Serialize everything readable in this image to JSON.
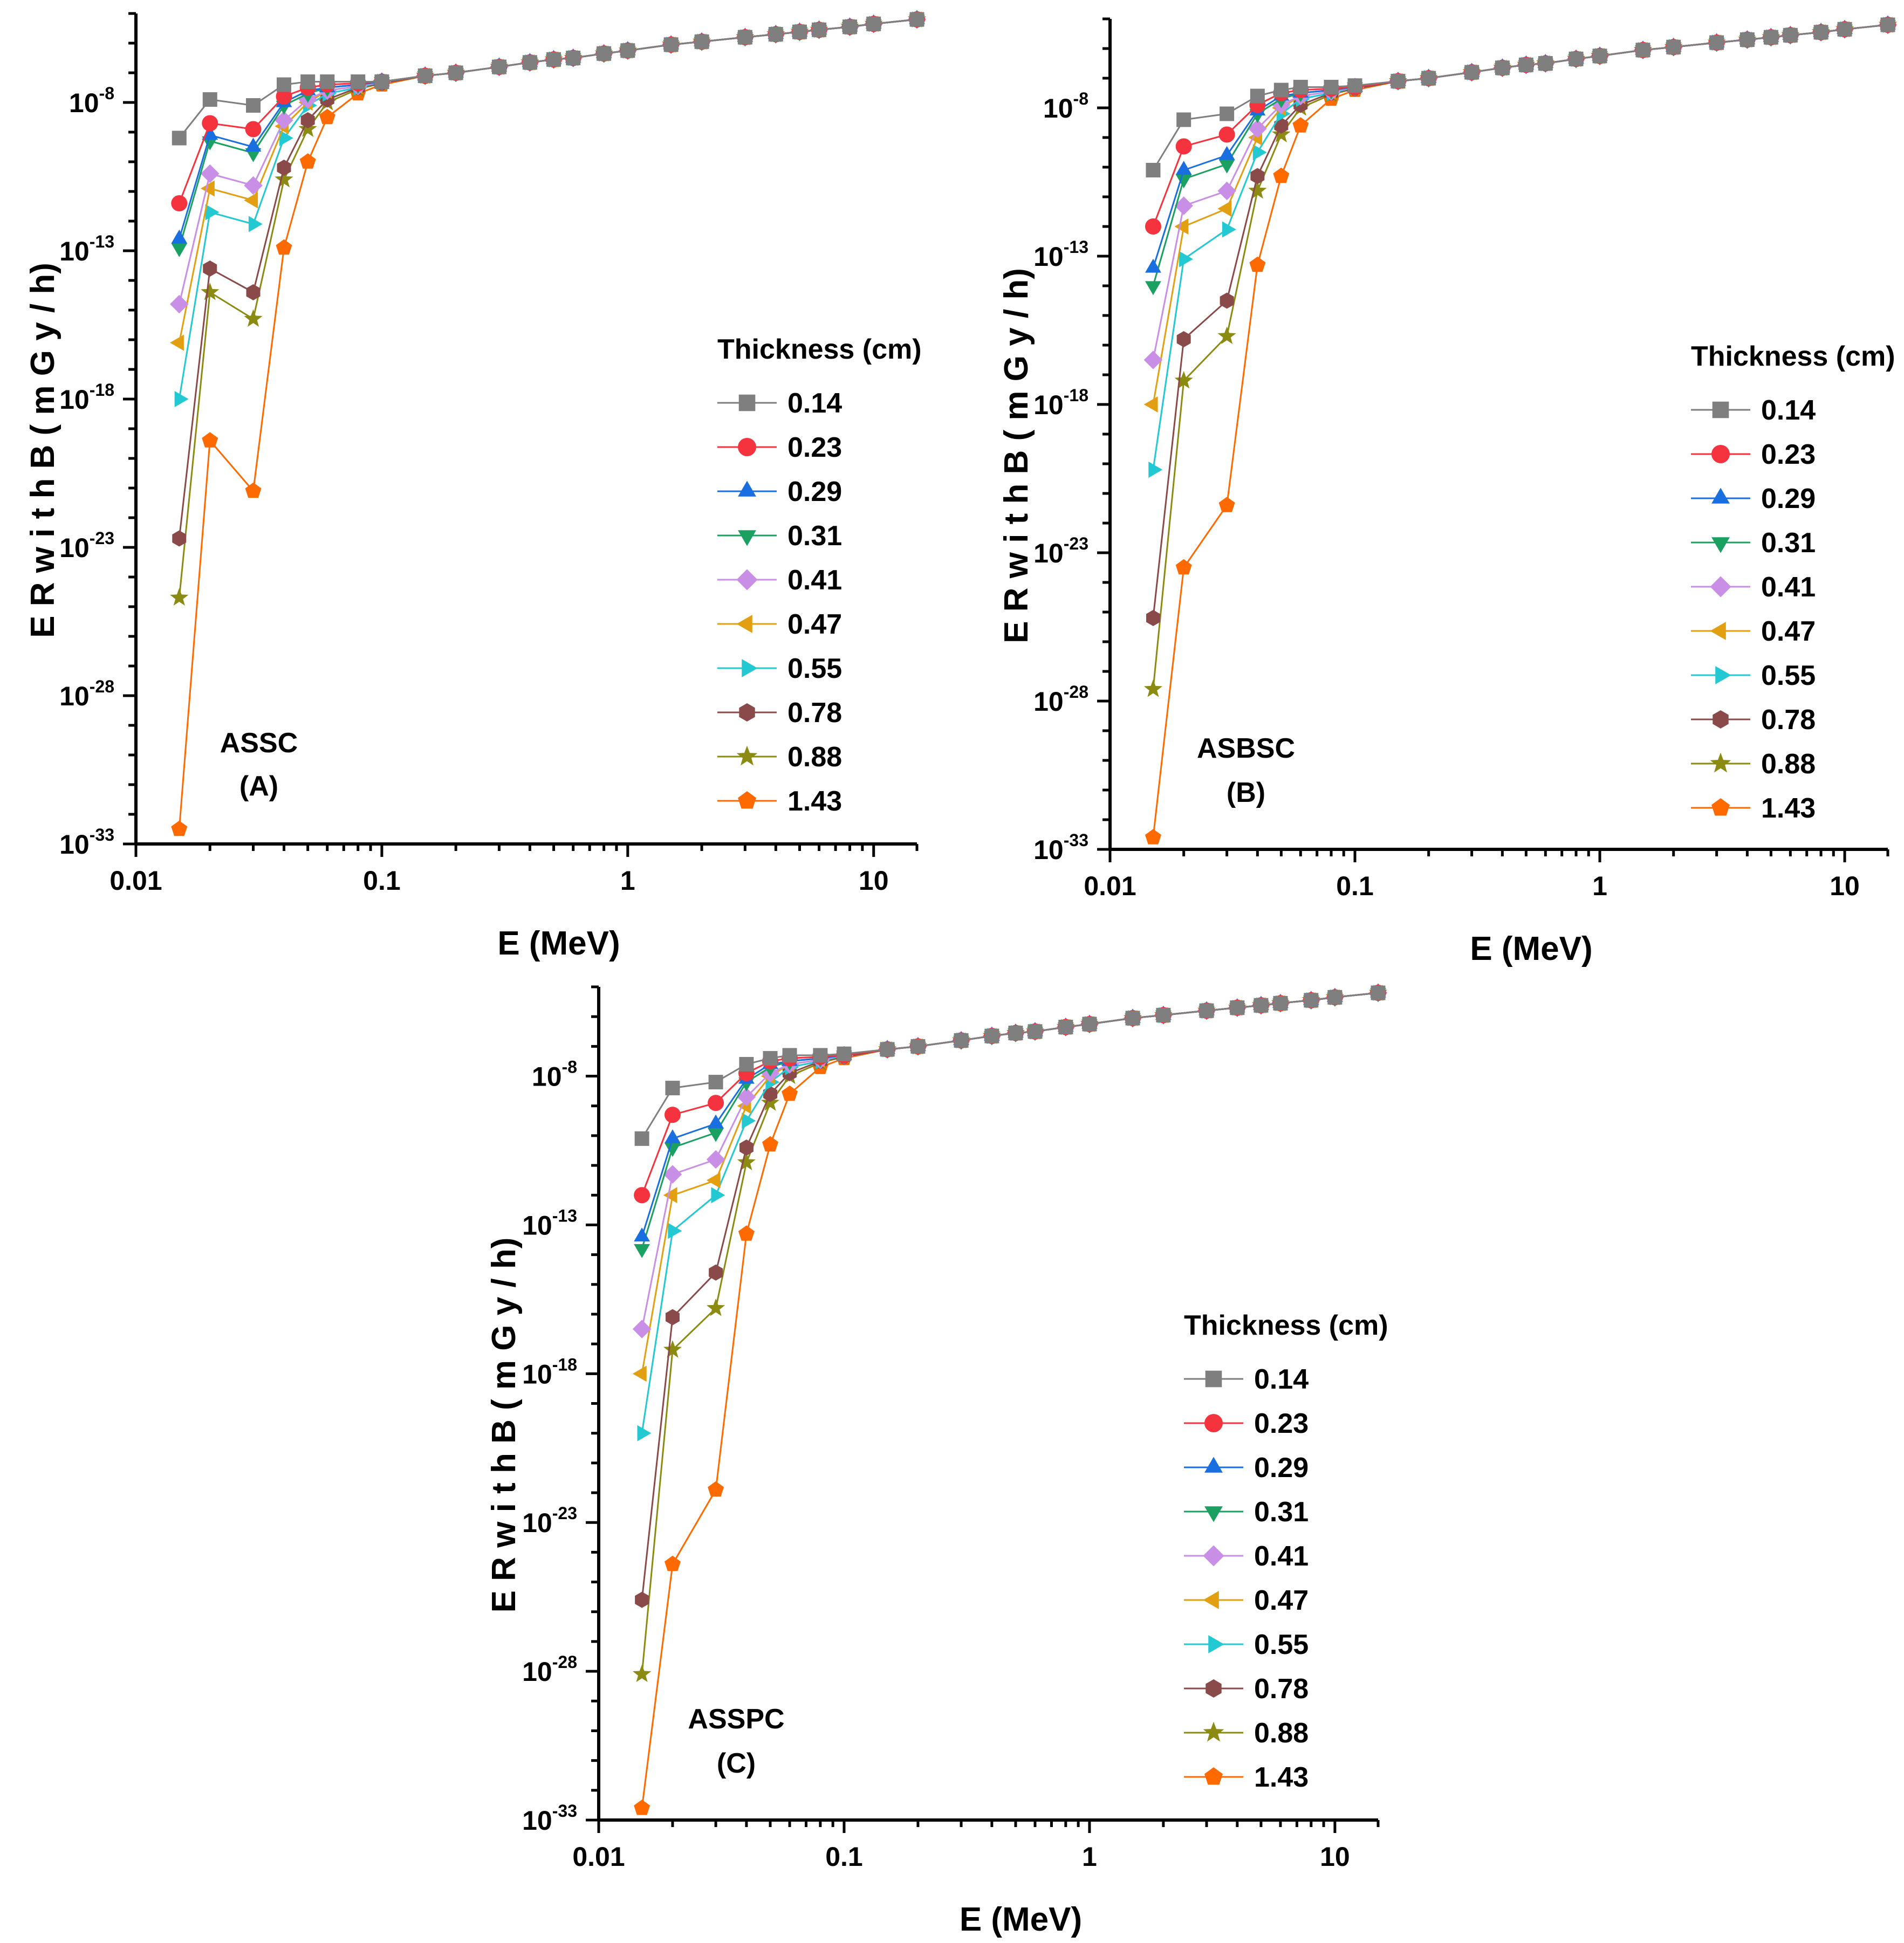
{
  "legend_title": "Thickness (cm)",
  "colors": {
    "0.14": "#7f7f7f",
    "0.23": "#f5333f",
    "0.29": "#1a6fe0",
    "0.31": "#1aa060",
    "0.41": "#c98ee6",
    "0.47": "#e29f12",
    "0.55": "#22c8d2",
    "0.78": "#8a4a4a",
    "0.88": "#8b8b12",
    "1.43": "#ff6a00"
  },
  "markers": {
    "0.14": "square",
    "0.23": "circle",
    "0.29": "triangle-up",
    "0.31": "triangle-down",
    "0.41": "diamond",
    "0.47": "triangle-left",
    "0.55": "triangle-right",
    "0.78": "hexagon",
    "0.88": "star",
    "1.43": "pentagon"
  },
  "chart_data": [
    {
      "type": "line",
      "annotation": "ASSC",
      "panel_label": "(A)",
      "xlabel": "E (MeV)",
      "ylabel": "E R  w i t h  B  ( m G y / h)",
      "xscale": "log",
      "yscale": "log",
      "xlim": [
        0.01,
        15
      ],
      "ylim_exp": [
        -33,
        -5
      ],
      "xticks": [
        "0.01",
        "0.1",
        "1",
        "10"
      ],
      "yticks_exp": [
        -33,
        -28,
        -23,
        -18,
        -13,
        -8
      ],
      "legend_position": "right",
      "x": [
        0.015,
        0.02,
        0.03,
        0.04,
        0.05,
        0.06,
        0.08,
        0.1,
        0.15,
        0.2,
        0.3,
        0.4,
        0.5,
        0.6,
        0.8,
        1,
        1.5,
        2,
        3,
        4,
        5,
        6,
        8,
        10,
        15
      ],
      "series": [
        {
          "name": "0.14",
          "log10_values": [
            -9.2,
            -7.9,
            -8.1,
            -7.4,
            -7.3,
            -7.3,
            -7.3,
            -7.3,
            -7.1,
            -7.0,
            -6.8,
            -6.65,
            -6.55,
            -6.5,
            -6.35,
            -6.25,
            -6.05,
            -5.95,
            -5.8,
            -5.7,
            -5.62,
            -5.55,
            -5.45,
            -5.35,
            -5.2
          ]
        },
        {
          "name": "0.23",
          "log10_values": [
            -11.4,
            -8.7,
            -8.9,
            -7.8,
            -7.5,
            -7.4,
            -7.35,
            -7.3,
            -7.1,
            -7.0,
            -6.8,
            -6.65,
            -6.55,
            -6.5,
            -6.35,
            -6.25,
            -6.05,
            -5.95,
            -5.8,
            -5.7,
            -5.62,
            -5.55,
            -5.45,
            -5.35,
            -5.2
          ]
        },
        {
          "name": "0.29",
          "log10_values": [
            -12.6,
            -9.1,
            -9.5,
            -8.0,
            -7.6,
            -7.5,
            -7.4,
            -7.3,
            -7.1,
            -7.0,
            -6.8,
            -6.65,
            -6.55,
            -6.5,
            -6.35,
            -6.25,
            -6.05,
            -5.95,
            -5.8,
            -5.7,
            -5.62,
            -5.55,
            -5.45,
            -5.35,
            -5.2
          ]
        },
        {
          "name": "0.31",
          "log10_values": [
            -12.9,
            -9.3,
            -9.7,
            -8.1,
            -7.7,
            -7.5,
            -7.4,
            -7.3,
            -7.1,
            -7.0,
            -6.8,
            -6.65,
            -6.55,
            -6.5,
            -6.35,
            -6.25,
            -6.05,
            -5.95,
            -5.8,
            -5.7,
            -5.62,
            -5.55,
            -5.45,
            -5.35,
            -5.2
          ]
        },
        {
          "name": "0.41",
          "log10_values": [
            -14.8,
            -10.4,
            -10.8,
            -8.6,
            -7.9,
            -7.6,
            -7.45,
            -7.3,
            -7.1,
            -7.0,
            -6.8,
            -6.65,
            -6.55,
            -6.5,
            -6.35,
            -6.25,
            -6.05,
            -5.95,
            -5.8,
            -5.7,
            -5.62,
            -5.55,
            -5.45,
            -5.35,
            -5.2
          ]
        },
        {
          "name": "0.47",
          "log10_values": [
            -16.1,
            -10.9,
            -11.3,
            -8.8,
            -8.0,
            -7.6,
            -7.45,
            -7.3,
            -7.1,
            -7.0,
            -6.8,
            -6.65,
            -6.55,
            -6.5,
            -6.35,
            -6.25,
            -6.05,
            -5.95,
            -5.8,
            -5.7,
            -5.62,
            -5.55,
            -5.45,
            -5.35,
            -5.2
          ]
        },
        {
          "name": "0.55",
          "log10_values": [
            -18.0,
            -11.7,
            -12.1,
            -9.2,
            -8.1,
            -7.7,
            -7.5,
            -7.3,
            -7.1,
            -7.0,
            -6.8,
            -6.65,
            -6.55,
            -6.5,
            -6.35,
            -6.25,
            -6.05,
            -5.95,
            -5.8,
            -5.7,
            -5.62,
            -5.55,
            -5.45,
            -5.35,
            -5.2
          ]
        },
        {
          "name": "0.78",
          "log10_values": [
            -22.7,
            -13.6,
            -14.4,
            -10.2,
            -8.6,
            -7.9,
            -7.5,
            -7.35,
            -7.1,
            -7.0,
            -6.8,
            -6.65,
            -6.55,
            -6.5,
            -6.35,
            -6.25,
            -6.05,
            -5.95,
            -5.8,
            -5.7,
            -5.62,
            -5.55,
            -5.45,
            -5.35,
            -5.2
          ]
        },
        {
          "name": "0.88",
          "log10_values": [
            -24.7,
            -14.4,
            -15.3,
            -10.6,
            -8.9,
            -8.0,
            -7.55,
            -7.35,
            -7.1,
            -7.0,
            -6.8,
            -6.65,
            -6.55,
            -6.5,
            -6.35,
            -6.25,
            -6.05,
            -5.95,
            -5.8,
            -5.7,
            -5.62,
            -5.55,
            -5.45,
            -5.35,
            -5.2
          ]
        },
        {
          "name": "1.43",
          "log10_values": [
            -32.5,
            -19.4,
            -21.1,
            -12.9,
            -10.0,
            -8.5,
            -7.7,
            -7.4,
            -7.1,
            -7.0,
            -6.8,
            -6.65,
            -6.55,
            -6.5,
            -6.35,
            -6.25,
            -6.05,
            -5.95,
            -5.8,
            -5.7,
            -5.62,
            -5.55,
            -5.45,
            -5.35,
            -5.2
          ]
        }
      ]
    },
    {
      "type": "line",
      "annotation": "ASBSC",
      "panel_label": "(B)",
      "xlabel": "E (MeV)",
      "ylabel": "E R  w i t h  B  ( m G y / h)",
      "xscale": "log",
      "yscale": "log",
      "xlim": [
        0.01,
        15
      ],
      "ylim_exp": [
        -33,
        -5
      ],
      "xticks": [
        "0.01",
        "0.1",
        "1",
        "10"
      ],
      "yticks_exp": [
        -33,
        -28,
        -23,
        -18,
        -13,
        -8
      ],
      "legend_position": "right",
      "x": [
        0.015,
        0.02,
        0.03,
        0.04,
        0.05,
        0.06,
        0.08,
        0.1,
        0.15,
        0.2,
        0.3,
        0.4,
        0.5,
        0.6,
        0.8,
        1,
        1.5,
        2,
        3,
        4,
        5,
        6,
        8,
        10,
        15
      ],
      "series": [
        {
          "name": "0.14",
          "log10_values": [
            -10.1,
            -8.4,
            -8.2,
            -7.6,
            -7.4,
            -7.3,
            -7.3,
            -7.25,
            -7.1,
            -7.0,
            -6.8,
            -6.65,
            -6.55,
            -6.5,
            -6.35,
            -6.25,
            -6.05,
            -5.95,
            -5.8,
            -5.7,
            -5.62,
            -5.55,
            -5.45,
            -5.35,
            -5.2
          ]
        },
        {
          "name": "0.23",
          "log10_values": [
            -12.0,
            -9.3,
            -8.9,
            -7.9,
            -7.5,
            -7.4,
            -7.35,
            -7.3,
            -7.1,
            -7.0,
            -6.8,
            -6.65,
            -6.55,
            -6.5,
            -6.35,
            -6.25,
            -6.05,
            -5.95,
            -5.8,
            -5.7,
            -5.62,
            -5.55,
            -5.45,
            -5.35,
            -5.2
          ]
        },
        {
          "name": "0.29",
          "log10_values": [
            -13.4,
            -10.1,
            -9.6,
            -8.1,
            -7.6,
            -7.5,
            -7.4,
            -7.3,
            -7.1,
            -7.0,
            -6.8,
            -6.65,
            -6.55,
            -6.5,
            -6.35,
            -6.25,
            -6.05,
            -5.95,
            -5.8,
            -5.7,
            -5.62,
            -5.55,
            -5.45,
            -5.35,
            -5.2
          ]
        },
        {
          "name": "0.31",
          "log10_values": [
            -14.0,
            -10.4,
            -9.9,
            -8.2,
            -7.7,
            -7.5,
            -7.4,
            -7.3,
            -7.1,
            -7.0,
            -6.8,
            -6.65,
            -6.55,
            -6.5,
            -6.35,
            -6.25,
            -6.05,
            -5.95,
            -5.8,
            -5.7,
            -5.62,
            -5.55,
            -5.45,
            -5.35,
            -5.2
          ]
        },
        {
          "name": "0.41",
          "log10_values": [
            -16.5,
            -11.3,
            -10.8,
            -8.7,
            -7.9,
            -7.6,
            -7.45,
            -7.3,
            -7.1,
            -7.0,
            -6.8,
            -6.65,
            -6.55,
            -6.5,
            -6.35,
            -6.25,
            -6.05,
            -5.95,
            -5.8,
            -5.7,
            -5.62,
            -5.55,
            -5.45,
            -5.35,
            -5.2
          ]
        },
        {
          "name": "0.47",
          "log10_values": [
            -18.0,
            -12.0,
            -11.4,
            -9.0,
            -8.0,
            -7.6,
            -7.45,
            -7.3,
            -7.1,
            -7.0,
            -6.8,
            -6.65,
            -6.55,
            -6.5,
            -6.35,
            -6.25,
            -6.05,
            -5.95,
            -5.8,
            -5.7,
            -5.62,
            -5.55,
            -5.45,
            -5.35,
            -5.2
          ]
        },
        {
          "name": "0.55",
          "log10_values": [
            -20.2,
            -13.1,
            -12.1,
            -9.5,
            -8.2,
            -7.7,
            -7.5,
            -7.3,
            -7.1,
            -7.0,
            -6.8,
            -6.65,
            -6.55,
            -6.5,
            -6.35,
            -6.25,
            -6.05,
            -5.95,
            -5.8,
            -5.7,
            -5.62,
            -5.55,
            -5.45,
            -5.35,
            -5.2
          ]
        },
        {
          "name": "0.78",
          "log10_values": [
            -25.2,
            -15.8,
            -14.5,
            -10.3,
            -8.6,
            -7.9,
            -7.5,
            -7.35,
            -7.1,
            -7.0,
            -6.8,
            -6.65,
            -6.55,
            -6.5,
            -6.35,
            -6.25,
            -6.05,
            -5.95,
            -5.8,
            -5.7,
            -5.62,
            -5.55,
            -5.45,
            -5.35,
            -5.2
          ]
        },
        {
          "name": "0.88",
          "log10_values": [
            -27.6,
            -17.2,
            -15.7,
            -10.8,
            -8.9,
            -8.0,
            -7.55,
            -7.35,
            -7.1,
            -7.0,
            -6.8,
            -6.65,
            -6.55,
            -6.5,
            -6.35,
            -6.25,
            -6.05,
            -5.95,
            -5.8,
            -5.7,
            -5.62,
            -5.55,
            -5.45,
            -5.35,
            -5.2
          ]
        },
        {
          "name": "1.43",
          "log10_values": [
            -32.6,
            -23.5,
            -21.4,
            -13.3,
            -10.3,
            -8.6,
            -7.7,
            -7.4,
            -7.1,
            -7.0,
            -6.8,
            -6.65,
            -6.55,
            -6.5,
            -6.35,
            -6.25,
            -6.05,
            -5.95,
            -5.8,
            -5.7,
            -5.62,
            -5.55,
            -5.45,
            -5.35,
            -5.2
          ]
        }
      ]
    },
    {
      "type": "line",
      "annotation": "ASSPC",
      "panel_label": "(C)",
      "xlabel": "E (MeV)",
      "ylabel": "E R  w i t h  B  ( m G y / h)",
      "xscale": "log",
      "yscale": "log",
      "xlim": [
        0.01,
        15
      ],
      "ylim_exp": [
        -33,
        -5
      ],
      "xticks": [
        "0.01",
        "0.1",
        "1",
        "10"
      ],
      "yticks_exp": [
        -33,
        -28,
        -23,
        -18,
        -13,
        -8
      ],
      "legend_position": "right",
      "x": [
        0.015,
        0.02,
        0.03,
        0.04,
        0.05,
        0.06,
        0.08,
        0.1,
        0.15,
        0.2,
        0.3,
        0.4,
        0.5,
        0.6,
        0.8,
        1,
        1.5,
        2,
        3,
        4,
        5,
        6,
        8,
        10,
        15
      ],
      "series": [
        {
          "name": "0.14",
          "log10_values": [
            -10.1,
            -8.4,
            -8.2,
            -7.6,
            -7.4,
            -7.3,
            -7.3,
            -7.25,
            -7.1,
            -7.0,
            -6.8,
            -6.65,
            -6.55,
            -6.5,
            -6.35,
            -6.25,
            -6.05,
            -5.95,
            -5.8,
            -5.7,
            -5.62,
            -5.55,
            -5.45,
            -5.35,
            -5.2
          ]
        },
        {
          "name": "0.23",
          "log10_values": [
            -12.0,
            -9.3,
            -8.9,
            -7.9,
            -7.5,
            -7.4,
            -7.35,
            -7.3,
            -7.1,
            -7.0,
            -6.8,
            -6.65,
            -6.55,
            -6.5,
            -6.35,
            -6.25,
            -6.05,
            -5.95,
            -5.8,
            -5.7,
            -5.62,
            -5.55,
            -5.45,
            -5.35,
            -5.2
          ]
        },
        {
          "name": "0.29",
          "log10_values": [
            -13.4,
            -10.1,
            -9.6,
            -8.1,
            -7.6,
            -7.5,
            -7.4,
            -7.3,
            -7.1,
            -7.0,
            -6.8,
            -6.65,
            -6.55,
            -6.5,
            -6.35,
            -6.25,
            -6.05,
            -5.95,
            -5.8,
            -5.7,
            -5.62,
            -5.55,
            -5.45,
            -5.35,
            -5.2
          ]
        },
        {
          "name": "0.31",
          "log10_values": [
            -13.8,
            -10.4,
            -9.9,
            -8.2,
            -7.7,
            -7.5,
            -7.4,
            -7.3,
            -7.1,
            -7.0,
            -6.8,
            -6.65,
            -6.55,
            -6.5,
            -6.35,
            -6.25,
            -6.05,
            -5.95,
            -5.8,
            -5.7,
            -5.62,
            -5.55,
            -5.45,
            -5.35,
            -5.2
          ]
        },
        {
          "name": "0.41",
          "log10_values": [
            -16.5,
            -11.3,
            -10.8,
            -8.7,
            -7.9,
            -7.6,
            -7.45,
            -7.3,
            -7.1,
            -7.0,
            -6.8,
            -6.65,
            -6.55,
            -6.5,
            -6.35,
            -6.25,
            -6.05,
            -5.95,
            -5.8,
            -5.7,
            -5.62,
            -5.55,
            -5.45,
            -5.35,
            -5.2
          ]
        },
        {
          "name": "0.47",
          "log10_values": [
            -18.0,
            -12.0,
            -11.5,
            -9.0,
            -8.0,
            -7.6,
            -7.45,
            -7.3,
            -7.1,
            -7.0,
            -6.8,
            -6.65,
            -6.55,
            -6.5,
            -6.35,
            -6.25,
            -6.05,
            -5.95,
            -5.8,
            -5.7,
            -5.62,
            -5.55,
            -5.45,
            -5.35,
            -5.2
          ]
        },
        {
          "name": "0.55",
          "log10_values": [
            -20.0,
            -13.2,
            -12.0,
            -9.5,
            -8.2,
            -7.7,
            -7.5,
            -7.3,
            -7.1,
            -7.0,
            -6.8,
            -6.65,
            -6.55,
            -6.5,
            -6.35,
            -6.25,
            -6.05,
            -5.95,
            -5.8,
            -5.7,
            -5.62,
            -5.55,
            -5.45,
            -5.35,
            -5.2
          ]
        },
        {
          "name": "0.78",
          "log10_values": [
            -25.6,
            -16.1,
            -14.6,
            -10.4,
            -8.6,
            -7.9,
            -7.5,
            -7.35,
            -7.1,
            -7.0,
            -6.8,
            -6.65,
            -6.55,
            -6.5,
            -6.35,
            -6.25,
            -6.05,
            -5.95,
            -5.8,
            -5.7,
            -5.62,
            -5.55,
            -5.45,
            -5.35,
            -5.2
          ]
        },
        {
          "name": "0.88",
          "log10_values": [
            -28.1,
            -17.2,
            -15.8,
            -10.9,
            -8.9,
            -8.0,
            -7.55,
            -7.35,
            -7.1,
            -7.0,
            -6.8,
            -6.65,
            -6.55,
            -6.5,
            -6.35,
            -6.25,
            -6.05,
            -5.95,
            -5.8,
            -5.7,
            -5.62,
            -5.55,
            -5.45,
            -5.35,
            -5.2
          ]
        },
        {
          "name": "1.43",
          "log10_values": [
            -32.6,
            -24.4,
            -21.9,
            -13.3,
            -10.3,
            -8.6,
            -7.7,
            -7.4,
            -7.1,
            -7.0,
            -6.8,
            -6.65,
            -6.55,
            -6.5,
            -6.35,
            -6.25,
            -6.05,
            -5.95,
            -5.8,
            -5.7,
            -5.62,
            -5.55,
            -5.45,
            -5.35,
            -5.2
          ]
        }
      ]
    }
  ]
}
